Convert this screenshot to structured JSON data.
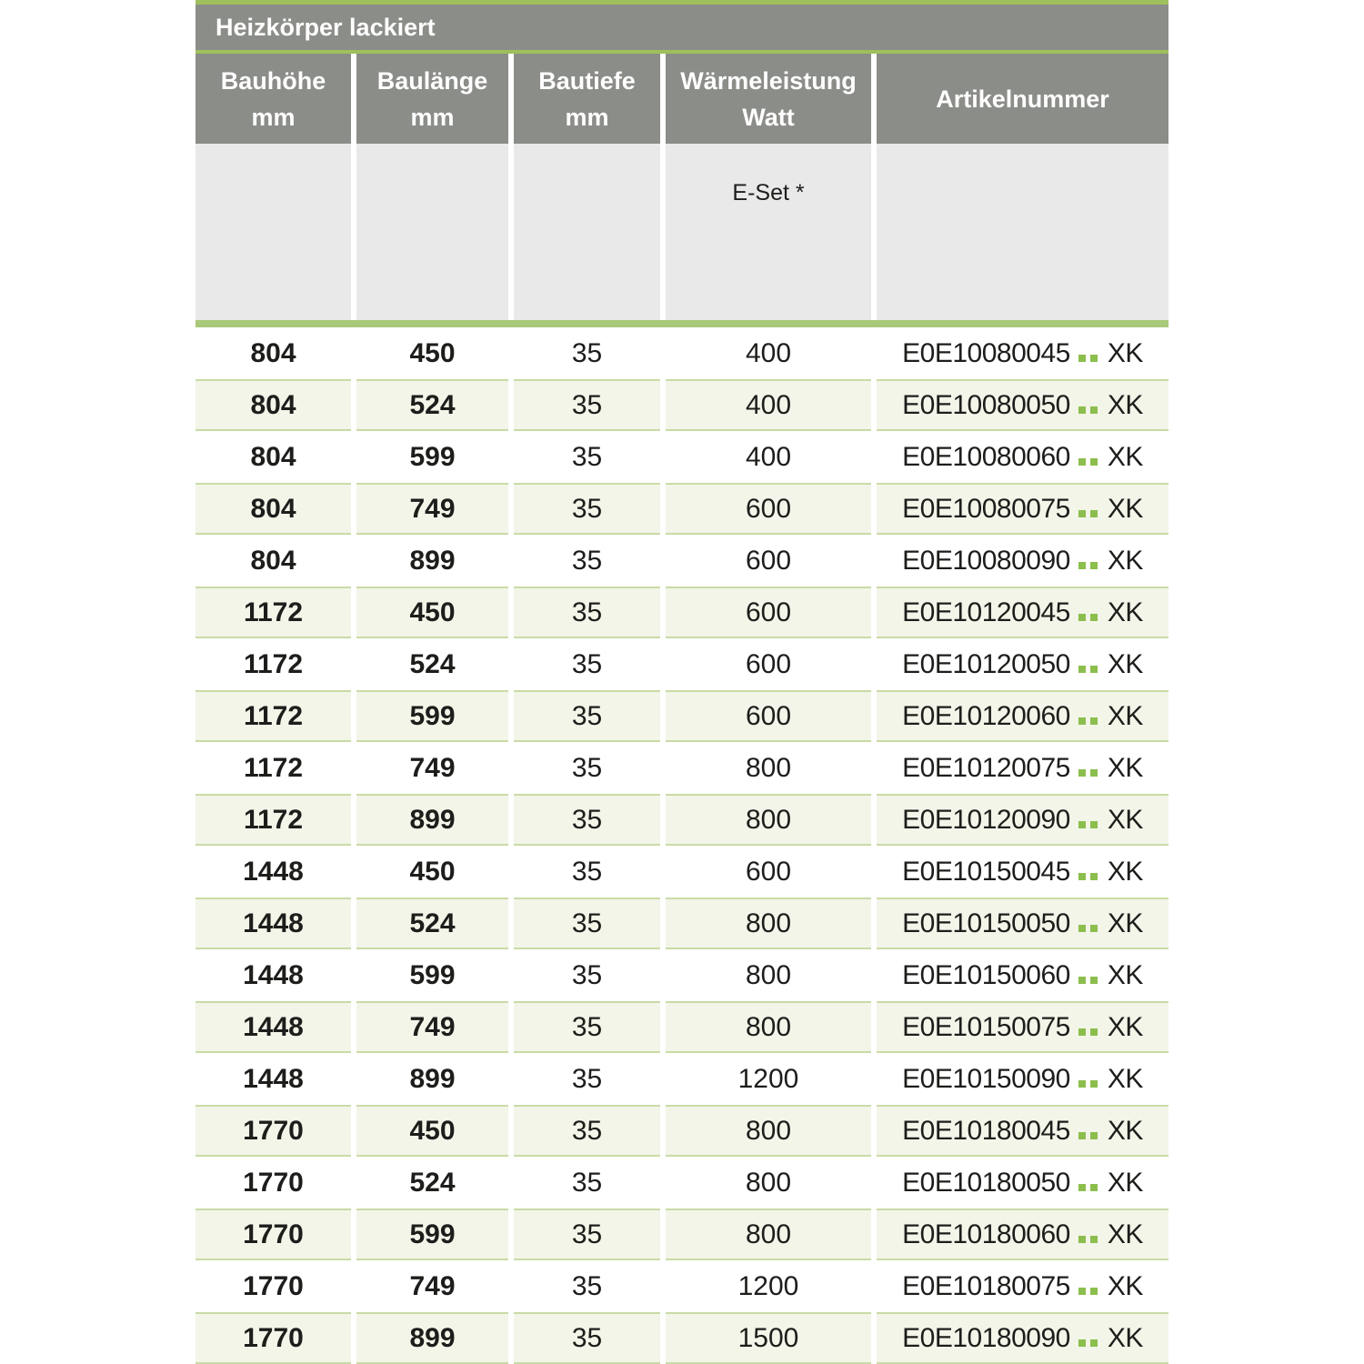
{
  "table": {
    "title": "Heizkörper lackiert",
    "columns": [
      {
        "label": "Bauhöhe",
        "unit": "mm"
      },
      {
        "label": "Baulänge",
        "unit": "mm"
      },
      {
        "label": "Bautiefe",
        "unit": "mm"
      },
      {
        "label": "Wärmeleistung",
        "unit": "Watt"
      },
      {
        "label": "Artikelnummer",
        "unit": ""
      }
    ],
    "subheader": {
      "eset_label": "E-Set *"
    },
    "rows": [
      {
        "bauhoehe": "804",
        "baulaenge": "450",
        "bautiefe": "35",
        "watt": "400",
        "artikel_prefix": "E0E10080045",
        "artikel_suffix": "XK"
      },
      {
        "bauhoehe": "804",
        "baulaenge": "524",
        "bautiefe": "35",
        "watt": "400",
        "artikel_prefix": "E0E10080050",
        "artikel_suffix": "XK"
      },
      {
        "bauhoehe": "804",
        "baulaenge": "599",
        "bautiefe": "35",
        "watt": "400",
        "artikel_prefix": "E0E10080060",
        "artikel_suffix": "XK"
      },
      {
        "bauhoehe": "804",
        "baulaenge": "749",
        "bautiefe": "35",
        "watt": "600",
        "artikel_prefix": "E0E10080075",
        "artikel_suffix": "XK"
      },
      {
        "bauhoehe": "804",
        "baulaenge": "899",
        "bautiefe": "35",
        "watt": "600",
        "artikel_prefix": "E0E10080090",
        "artikel_suffix": "XK"
      },
      {
        "bauhoehe": "1172",
        "baulaenge": "450",
        "bautiefe": "35",
        "watt": "600",
        "artikel_prefix": "E0E10120045",
        "artikel_suffix": "XK"
      },
      {
        "bauhoehe": "1172",
        "baulaenge": "524",
        "bautiefe": "35",
        "watt": "600",
        "artikel_prefix": "E0E10120050",
        "artikel_suffix": "XK"
      },
      {
        "bauhoehe": "1172",
        "baulaenge": "599",
        "bautiefe": "35",
        "watt": "600",
        "artikel_prefix": "E0E10120060",
        "artikel_suffix": "XK"
      },
      {
        "bauhoehe": "1172",
        "baulaenge": "749",
        "bautiefe": "35",
        "watt": "800",
        "artikel_prefix": "E0E10120075",
        "artikel_suffix": "XK"
      },
      {
        "bauhoehe": "1172",
        "baulaenge": "899",
        "bautiefe": "35",
        "watt": "800",
        "artikel_prefix": "E0E10120090",
        "artikel_suffix": "XK"
      },
      {
        "bauhoehe": "1448",
        "baulaenge": "450",
        "bautiefe": "35",
        "watt": "600",
        "artikel_prefix": "E0E10150045",
        "artikel_suffix": "XK"
      },
      {
        "bauhoehe": "1448",
        "baulaenge": "524",
        "bautiefe": "35",
        "watt": "800",
        "artikel_prefix": "E0E10150050",
        "artikel_suffix": "XK"
      },
      {
        "bauhoehe": "1448",
        "baulaenge": "599",
        "bautiefe": "35",
        "watt": "800",
        "artikel_prefix": "E0E10150060",
        "artikel_suffix": "XK"
      },
      {
        "bauhoehe": "1448",
        "baulaenge": "749",
        "bautiefe": "35",
        "watt": "800",
        "artikel_prefix": "E0E10150075",
        "artikel_suffix": "XK"
      },
      {
        "bauhoehe": "1448",
        "baulaenge": "899",
        "bautiefe": "35",
        "watt": "1200",
        "artikel_prefix": "E0E10150090",
        "artikel_suffix": "XK"
      },
      {
        "bauhoehe": "1770",
        "baulaenge": "450",
        "bautiefe": "35",
        "watt": "800",
        "artikel_prefix": "E0E10180045",
        "artikel_suffix": "XK"
      },
      {
        "bauhoehe": "1770",
        "baulaenge": "524",
        "bautiefe": "35",
        "watt": "800",
        "artikel_prefix": "E0E10180050",
        "artikel_suffix": "XK"
      },
      {
        "bauhoehe": "1770",
        "baulaenge": "599",
        "bautiefe": "35",
        "watt": "800",
        "artikel_prefix": "E0E10180060",
        "artikel_suffix": "XK"
      },
      {
        "bauhoehe": "1770",
        "baulaenge": "749",
        "bautiefe": "35",
        "watt": "1200",
        "artikel_prefix": "E0E10180075",
        "artikel_suffix": "XK"
      },
      {
        "bauhoehe": "1770",
        "baulaenge": "899",
        "bautiefe": "35",
        "watt": "1500",
        "artikel_prefix": "E0E10180090",
        "artikel_suffix": "XK"
      }
    ]
  },
  "colors": {
    "header_gray": "#8b8d88",
    "subheader_gray": "#e9e9e9",
    "accent_line_green": "#9fc05c",
    "accent_bar_green": "#a9c97a",
    "row_green": "#f2f5e8",
    "row_border_green": "#c9dba6",
    "placeholder_dot_green": "#8cbe4d",
    "text": "#1d1d1b"
  }
}
